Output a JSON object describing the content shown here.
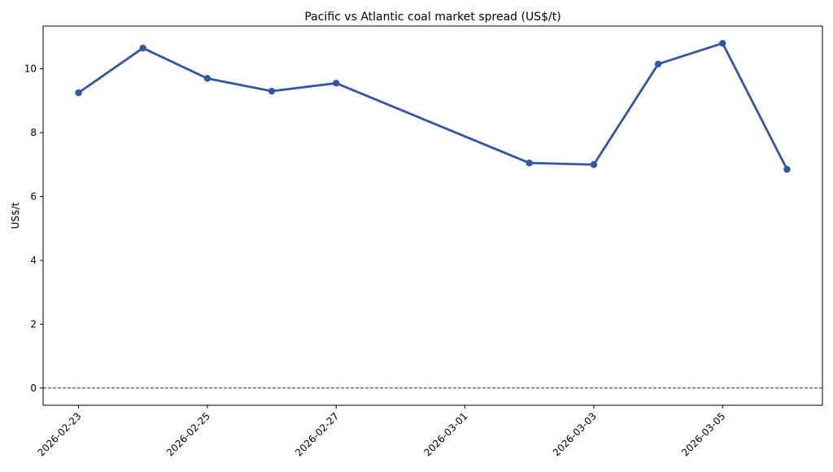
{
  "chart_data": {
    "type": "line",
    "title": "Pacific vs Atlantic coal market spread (US$/t)",
    "xlabel": "",
    "ylabel": "US$/t",
    "x": [
      "2026-02-23",
      "2026-02-24",
      "2026-02-25",
      "2026-02-26",
      "2026-02-27",
      "2026-03-02",
      "2026-03-03",
      "2026-03-04",
      "2026-03-05",
      "2026-03-06"
    ],
    "x_day_offsets": [
      0,
      1,
      2,
      3,
      4,
      7,
      8,
      9,
      10,
      11
    ],
    "series": [
      {
        "name": "spread",
        "values": [
          9.25,
          10.65,
          9.7,
          9.3,
          9.55,
          7.05,
          7.0,
          10.15,
          10.8,
          6.85
        ],
        "color": "#3256a6"
      }
    ],
    "reference_line": {
      "y": 0,
      "style": "dashed",
      "color": "#34495e"
    },
    "xticks": [
      {
        "label": "2026-02-23",
        "day": 0
      },
      {
        "label": "2026-02-25",
        "day": 2
      },
      {
        "label": "2026-02-27",
        "day": 4
      },
      {
        "label": "2026-03-01",
        "day": 6
      },
      {
        "label": "2026-03-03",
        "day": 8
      },
      {
        "label": "2026-03-05",
        "day": 10
      }
    ],
    "yticks": [
      0,
      2,
      4,
      6,
      8,
      10
    ],
    "xlim": [
      -0.55,
      11.55
    ],
    "ylim": [
      -0.54,
      11.34
    ],
    "grid": false,
    "legend": "none"
  }
}
